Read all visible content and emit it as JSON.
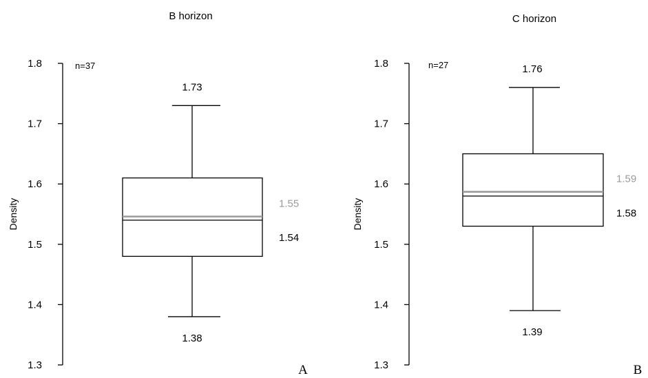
{
  "chart_data": [
    {
      "type": "box",
      "title": "B horizon",
      "ylabel": "Density",
      "ylim": [
        1.3,
        1.8
      ],
      "yticks": [
        "1.3",
        "1.4",
        "1.5",
        "1.6",
        "1.7",
        "1.8"
      ],
      "n_label": "n=37",
      "panel_letter": "A",
      "whisker_low": 1.38,
      "q1": 1.48,
      "median": 1.54,
      "mean": 1.546,
      "q3": 1.61,
      "whisker_high": 1.73,
      "labels": {
        "max": "1.73",
        "min": "1.38",
        "mean": "1.55",
        "median": "1.54"
      },
      "colors": {
        "mean": "#9a9a9a",
        "median": "#000000"
      }
    },
    {
      "type": "box",
      "title": "C horizon",
      "ylabel": "Density",
      "ylim": [
        1.3,
        1.8
      ],
      "yticks": [
        "1.3",
        "1.4",
        "1.5",
        "1.6",
        "1.7",
        "1.8"
      ],
      "n_label": "n=27",
      "panel_letter": "B",
      "whisker_low": 1.39,
      "q1": 1.53,
      "median": 1.58,
      "mean": 1.587,
      "q3": 1.65,
      "whisker_high": 1.76,
      "labels": {
        "max": "1.76",
        "min": "1.39",
        "mean": "1.59",
        "median": "1.58"
      },
      "colors": {
        "mean": "#9a9a9a",
        "median": "#000000"
      }
    }
  ]
}
